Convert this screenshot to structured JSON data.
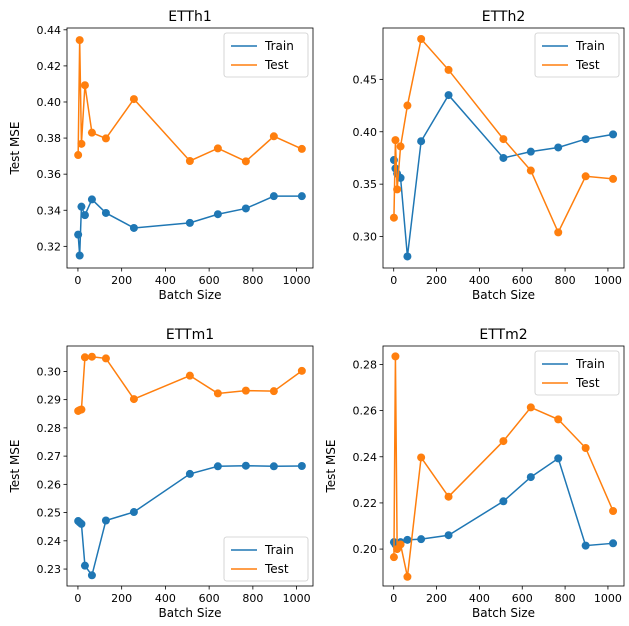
{
  "colors": {
    "train": "#1f77b4",
    "test": "#ff7f0e"
  },
  "chart_data": [
    {
      "type": "line",
      "title": "ETTh1",
      "xlabel": "Batch Size",
      "ylabel": "Test MSE",
      "x": [
        1,
        8,
        16,
        32,
        64,
        128,
        256,
        512,
        640,
        768,
        896,
        1024
      ],
      "series": [
        {
          "name": "Train",
          "values": [
            0.3265,
            0.3149,
            0.342,
            0.3373,
            0.346,
            0.3385,
            0.3302,
            0.333,
            0.3378,
            0.341,
            0.3478,
            0.3478
          ]
        },
        {
          "name": "Test",
          "values": [
            0.3706,
            0.4343,
            0.3768,
            0.4093,
            0.383,
            0.3798,
            0.4016,
            0.3673,
            0.3743,
            0.3671,
            0.381,
            0.374
          ]
        }
      ],
      "xlim": [
        -50,
        1075
      ],
      "ylim": [
        0.308,
        0.441
      ],
      "xticks": [
        0,
        200,
        400,
        600,
        800,
        1000
      ],
      "yticks": [
        0.32,
        0.34,
        0.36,
        0.38,
        0.4,
        0.42,
        0.44
      ],
      "legend": "top-right"
    },
    {
      "type": "line",
      "title": "ETTh2",
      "xlabel": "Batch Size",
      "ylabel": "",
      "x": [
        1,
        8,
        16,
        32,
        64,
        128,
        256,
        512,
        640,
        768,
        896,
        1024
      ],
      "series": [
        {
          "name": "Train",
          "values": [
            0.373,
            0.365,
            0.36,
            0.356,
            0.281,
            0.391,
            0.435,
            0.375,
            0.381,
            0.385,
            0.393,
            0.3975
          ]
        },
        {
          "name": "Test",
          "values": [
            0.318,
            0.392,
            0.345,
            0.386,
            0.425,
            0.4885,
            0.459,
            0.393,
            0.363,
            0.304,
            0.3575,
            0.355
          ]
        }
      ],
      "xlim": [
        -50,
        1075
      ],
      "ylim": [
        0.27,
        0.499
      ],
      "xticks": [
        0,
        200,
        400,
        600,
        800,
        1000
      ],
      "yticks": [
        0.3,
        0.35,
        0.4,
        0.45
      ],
      "legend": "top-right"
    },
    {
      "type": "line",
      "title": "ETTm1",
      "xlabel": "Batch Size",
      "ylabel": "Test MSE",
      "x": [
        1,
        8,
        16,
        32,
        64,
        128,
        256,
        512,
        640,
        768,
        896,
        1024
      ],
      "series": [
        {
          "name": "Train",
          "values": [
            0.247,
            0.2465,
            0.246,
            0.2312,
            0.2278,
            0.2472,
            0.2502,
            0.2637,
            0.2664,
            0.2666,
            0.2664,
            0.2665
          ]
        },
        {
          "name": "Test",
          "values": [
            0.286,
            0.2863,
            0.2865,
            0.305,
            0.3052,
            0.3046,
            0.2902,
            0.2985,
            0.2922,
            0.2932,
            0.293,
            0.3002
          ]
        }
      ],
      "xlim": [
        -50,
        1075
      ],
      "ylim": [
        0.224,
        0.309
      ],
      "xticks": [
        0,
        200,
        400,
        600,
        800,
        1000
      ],
      "yticks": [
        0.23,
        0.24,
        0.25,
        0.26,
        0.27,
        0.28,
        0.29,
        0.3
      ],
      "legend": "bottom-right"
    },
    {
      "type": "line",
      "title": "ETTm2",
      "xlabel": "Batch Size",
      "ylabel": "Test MSE",
      "x": [
        1,
        8,
        16,
        32,
        64,
        128,
        256,
        512,
        640,
        768,
        896,
        1024
      ],
      "series": [
        {
          "name": "Train",
          "values": [
            0.203,
            0.202,
            0.201,
            0.203,
            0.204,
            0.2043,
            0.206,
            0.2207,
            0.2312,
            0.2393,
            0.2015,
            0.2025
          ]
        },
        {
          "name": "Test",
          "values": [
            0.1965,
            0.2835,
            0.2,
            0.202,
            0.188,
            0.2397,
            0.2227,
            0.2468,
            0.2614,
            0.2562,
            0.2438,
            0.2165
          ]
        }
      ],
      "xlim": [
        -50,
        1075
      ],
      "ylim": [
        0.184,
        0.288
      ],
      "xticks": [
        0,
        200,
        400,
        600,
        800,
        1000
      ],
      "yticks": [
        0.2,
        0.22,
        0.24,
        0.26,
        0.28
      ],
      "legend": "top-right"
    }
  ]
}
